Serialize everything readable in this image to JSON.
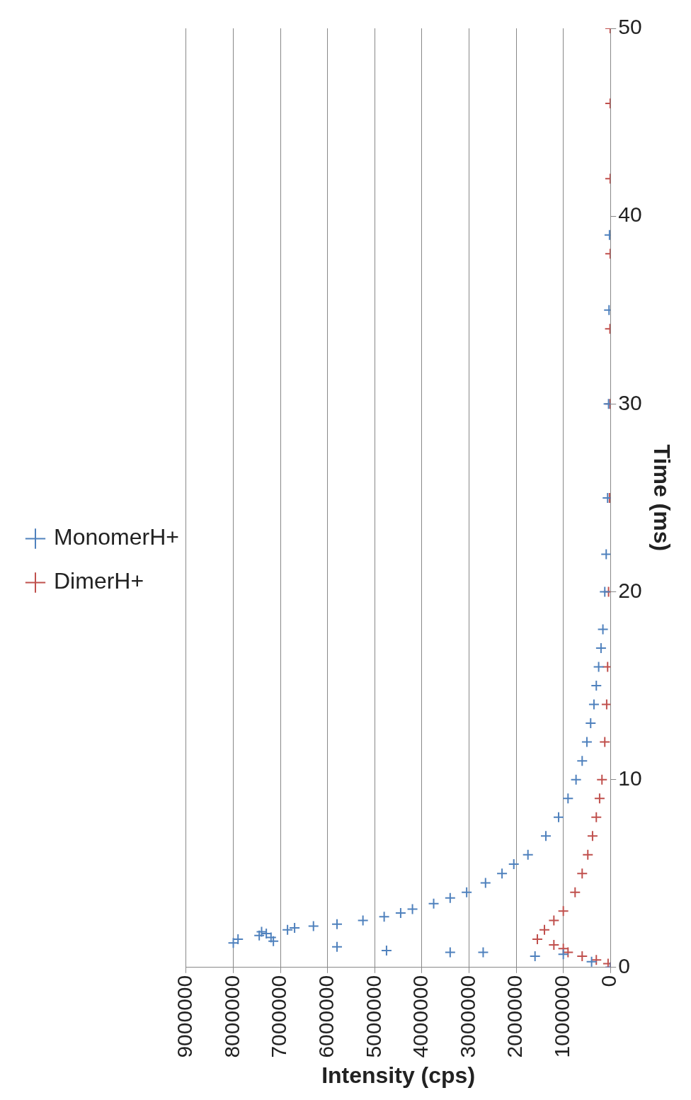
{
  "chart_data": {
    "type": "scatter",
    "xlabel": "Intensity (cps)",
    "ylabel": "Time (ms)",
    "xlim": [
      9000000,
      0
    ],
    "xticks": [
      0,
      1000000,
      2000000,
      3000000,
      4000000,
      5000000,
      6000000,
      7000000,
      8000000,
      9000000
    ],
    "ylim": [
      0,
      50
    ],
    "yticks": [
      0,
      10,
      20,
      30,
      40,
      50
    ],
    "grid": "x",
    "legend": "left",
    "marker": "cross",
    "series": [
      {
        "name": "MonomerH+",
        "color": "#4f81bd",
        "x": [
          0,
          400000,
          1600000,
          1000000,
          2700000,
          3400000,
          4750000,
          5800000,
          8000000,
          7150000,
          7900000,
          7200000,
          7450000,
          7300000,
          7400000,
          6850000,
          6700000,
          6300000,
          5800000,
          5250000,
          4800000,
          4450000,
          4200000,
          3750000,
          3400000,
          3050000,
          2650000,
          2300000,
          2050000,
          1750000,
          1370000,
          1100000,
          900000,
          730000,
          600000,
          500000,
          420000,
          350000,
          300000,
          250000,
          200000,
          160000,
          120000,
          90000,
          60000,
          40000,
          30000,
          20000
        ],
        "values": [
          0,
          0.3,
          0.6,
          0.7,
          0.8,
          0.8,
          0.9,
          1.1,
          1.3,
          1.4,
          1.5,
          1.6,
          1.7,
          1.8,
          1.9,
          2.0,
          2.1,
          2.2,
          2.3,
          2.5,
          2.7,
          2.9,
          3.1,
          3.4,
          3.7,
          4.0,
          4.5,
          5.0,
          5.5,
          6.0,
          7.0,
          8.0,
          9.0,
          10,
          11,
          12,
          13,
          14,
          15,
          16,
          17,
          18,
          20,
          22,
          25,
          30,
          35,
          39
        ]
      },
      {
        "name": "DimerH+",
        "color": "#c0504d",
        "x": [
          0,
          50000,
          300000,
          600000,
          900000,
          1000000,
          1200000,
          1550000,
          1400000,
          1200000,
          1000000,
          750000,
          600000,
          480000,
          380000,
          300000,
          230000,
          180000,
          120000,
          80000,
          60000,
          40000,
          20000,
          10000,
          10000,
          5000,
          5000,
          5000,
          5000
        ],
        "values": [
          0,
          0.2,
          0.4,
          0.6,
          0.8,
          1.0,
          1.2,
          1.5,
          2.0,
          2.5,
          3.0,
          4.0,
          5.0,
          6.0,
          7.0,
          8.0,
          9.0,
          10,
          12,
          14,
          16,
          20,
          25,
          30,
          34,
          38,
          42,
          46,
          50
        ]
      }
    ]
  }
}
